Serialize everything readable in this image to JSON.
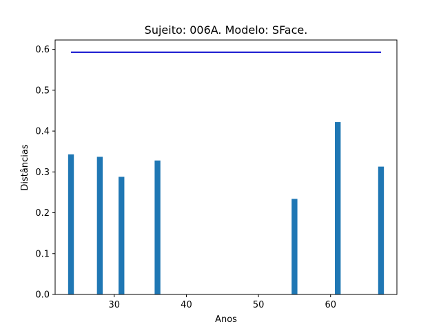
{
  "chart_data": {
    "type": "bar",
    "title": "Sujeito: 006A. Modelo: SFace.",
    "xlabel": "Anos",
    "ylabel": "Distâncias",
    "xlim": [
      21.8,
      69.2
    ],
    "ylim": [
      0,
      0.623
    ],
    "xticks": [
      30,
      40,
      50,
      60
    ],
    "yticks": [
      0.0,
      0.1,
      0.2,
      0.3,
      0.4,
      0.5,
      0.6
    ],
    "bar_width": 0.8,
    "grid": false,
    "bars": [
      {
        "x": 24,
        "value": 0.343
      },
      {
        "x": 28,
        "value": 0.337
      },
      {
        "x": 31,
        "value": 0.288
      },
      {
        "x": 36,
        "value": 0.328
      },
      {
        "x": 55,
        "value": 0.234
      },
      {
        "x": 61,
        "value": 0.422
      },
      {
        "x": 67,
        "value": 0.313
      }
    ],
    "bar_color": "#1f77b4",
    "threshold": {
      "value": 0.593,
      "x_start": 24,
      "x_end": 67,
      "color": "#0000cc"
    }
  }
}
